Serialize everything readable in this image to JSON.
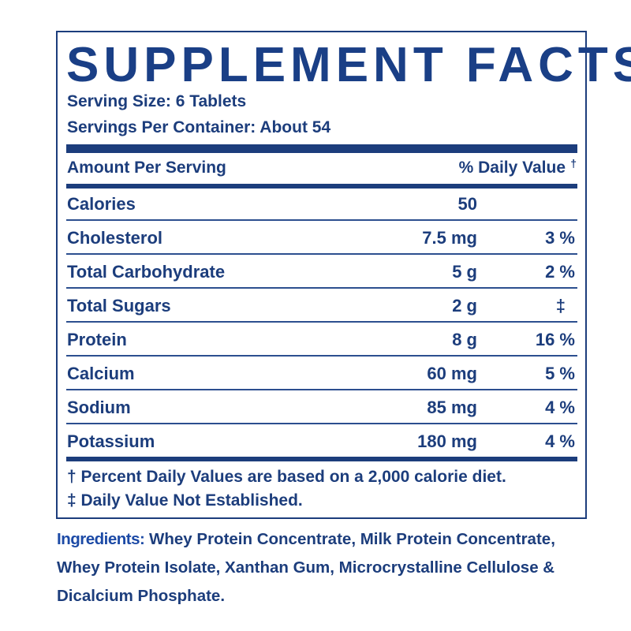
{
  "label": {
    "title": "SUPPLEMENT FACTS",
    "serving_size": "Serving Size: 6 Tablets",
    "servings_per_container": "Servings Per Container: About 54",
    "header_left": "Amount Per Serving",
    "header_right": "% Daily Value",
    "header_dagger": "†",
    "rows": [
      {
        "name": "Calories",
        "amount": "50",
        "dv": ""
      },
      {
        "name": "Cholesterol",
        "amount": "7.5 mg",
        "dv": "3 %"
      },
      {
        "name": "Total Carbohydrate",
        "amount": "5 g",
        "dv": "2 %"
      },
      {
        "name": "Total Sugars",
        "amount": "2 g",
        "dv": "‡"
      },
      {
        "name": "Protein",
        "amount": "8 g",
        "dv": "16 %"
      },
      {
        "name": "Calcium",
        "amount": "60 mg",
        "dv": "5 %"
      },
      {
        "name": "Sodium",
        "amount": "85 mg",
        "dv": "4 %"
      },
      {
        "name": "Potassium",
        "amount": "180 mg",
        "dv": "4 %"
      }
    ],
    "footnote_1": "† Percent Daily Values are based on a 2,000 calorie diet.",
    "footnote_2": "‡ Daily Value Not Established."
  },
  "ingredients": {
    "label": "Ingredients:",
    "text": " Whey Protein Concentrate, Milk Protein Concentrate, Whey Protein Isolate, Xanthan Gum, Microcrystalline Cellulose & Dicalcium Phosphate."
  },
  "colors": {
    "text": "#1c3d7c",
    "ingredients_label": "#1c4aa6",
    "background": "#ffffff"
  }
}
